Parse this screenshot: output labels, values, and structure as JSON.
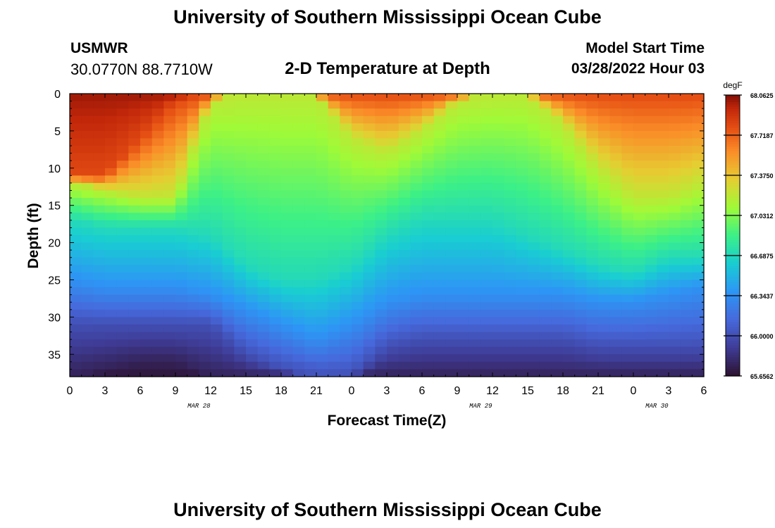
{
  "title": "University of Southern Mississippi Ocean Cube",
  "footer_title": "University of Southern Mississippi Ocean Cube",
  "station": {
    "name": "USMWR",
    "coordinates": "30.0770N  88.7710W"
  },
  "subtitle": "2-D Temperature at Depth",
  "model_start": {
    "label": "Model Start Time",
    "value": "03/28/2022 Hour 03"
  },
  "chart_data": {
    "type": "heatmap",
    "title": "2-D Temperature at Depth",
    "xlabel": "Forecast Time(Z)",
    "ylabel": "Depth (ft)",
    "x_range_hours": [
      0,
      54
    ],
    "x_major_step_hours": 3,
    "x_tick_labels": [
      "0",
      "3",
      "6",
      "9",
      "12",
      "15",
      "18",
      "21",
      "0",
      "3",
      "6",
      "9",
      "12",
      "15",
      "18",
      "21",
      "0",
      "3",
      "6"
    ],
    "date_labels": [
      {
        "text": "MAR 28",
        "hour": 11
      },
      {
        "text": "MAR 29",
        "hour": 35
      },
      {
        "text": "MAR 30",
        "hour": 50
      }
    ],
    "y_range_ft": [
      0,
      38
    ],
    "y_ticks": [
      0,
      5,
      10,
      15,
      20,
      25,
      30,
      35
    ],
    "y_minor_step": 1,
    "colorbar": {
      "unit": "degF",
      "min": 65.65625,
      "max": 68.0625,
      "tick_labels": [
        "68.0625",
        "67.7187",
        "67.3750",
        "67.0312",
        "66.6875",
        "66.3437",
        "66.0000",
        "65.6562"
      ],
      "tick_values": [
        68.0625,
        67.71875,
        67.375,
        67.03125,
        66.6875,
        66.34375,
        66.0,
        65.65625
      ]
    },
    "grid": {
      "time_step_hours": 1,
      "depth_step_ft": 1,
      "time_knots_hours": [
        0,
        3,
        6,
        9,
        12,
        15,
        18,
        21,
        24,
        27,
        30,
        33,
        36,
        39,
        42,
        45,
        48,
        51,
        54
      ],
      "isotherms": [
        {
          "temp_degF": 67.8,
          "depth_ft": [
            11,
            11,
            6,
            1,
            0,
            0,
            0,
            0,
            0,
            0,
            0,
            0,
            0,
            0,
            0,
            0,
            0,
            0,
            0
          ]
        },
        {
          "temp_degF": 67.2,
          "depth_ft": [
            12,
            13,
            14,
            14,
            1,
            0,
            0,
            0,
            6,
            8,
            5,
            1,
            0,
            0,
            4,
            10,
            14,
            14,
            12
          ]
        },
        {
          "temp_degF": 66.7,
          "depth_ft": [
            17,
            18,
            18,
            18,
            19,
            23,
            25,
            25,
            23,
            19,
            17,
            17,
            17,
            19,
            21,
            23,
            24,
            22,
            22
          ]
        },
        {
          "temp_degF": 66.35,
          "depth_ft": [
            25,
            26,
            26,
            26,
            27,
            29,
            31,
            33,
            31,
            28,
            27,
            27,
            27,
            27,
            27,
            28,
            28,
            27,
            26
          ]
        },
        {
          "temp_degF": 66.0,
          "depth_ft": [
            31,
            31,
            31,
            31,
            31,
            35,
            37,
            38,
            38,
            34,
            33,
            33,
            33,
            33,
            33,
            34,
            34,
            34,
            34
          ]
        },
        {
          "temp_degF": 65.75,
          "depth_ft": [
            38,
            37,
            36,
            36,
            38,
            38,
            38,
            38,
            38,
            38,
            38,
            38,
            38,
            38,
            38,
            38,
            38,
            38,
            38
          ]
        }
      ]
    }
  }
}
